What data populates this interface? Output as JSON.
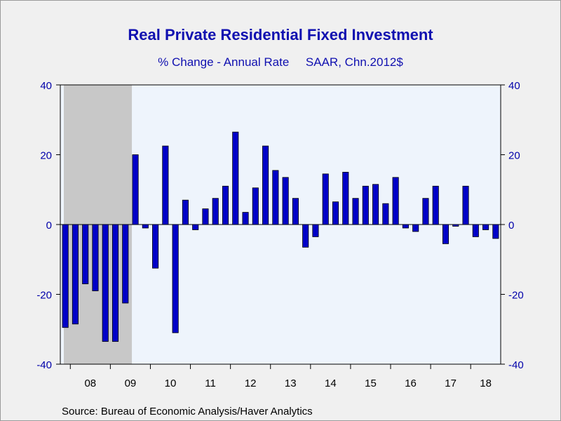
{
  "chart_data": {
    "type": "bar",
    "title": "Real Private Residential Fixed Investment",
    "subtitle": "% Change - Annual Rate     SAAR, Chn.2012$",
    "source": "Source:  Bureau of Economic Analysis/Haver Analytics",
    "ylim": [
      -40,
      40
    ],
    "yticks": [
      40,
      20,
      0,
      -20,
      -40
    ],
    "ytick_labels": [
      "40",
      "20",
      "0",
      "-20",
      "-40"
    ],
    "x_year_labels": [
      "08",
      "09",
      "10",
      "11",
      "12",
      "13",
      "14",
      "15",
      "16",
      "17",
      "18"
    ],
    "first_quarter": "2007Q4",
    "recession_shading": {
      "start_index": 0,
      "end_index": 6
    },
    "grid": false,
    "colors": {
      "bar": "#0000c8",
      "bar_outline": "#000000",
      "plot_bg": "#eef4fc",
      "recession": "#c8c8c8",
      "axis_text": "#0000aa",
      "title": "#1010b0"
    },
    "series": [
      {
        "values": [
          -29.5,
          -28.5,
          -17,
          -19,
          -33.5,
          -33.5,
          -22.5,
          20,
          -1,
          -12.5,
          22.5,
          -31,
          7,
          -1.5,
          4.5,
          7.5,
          11,
          26.5,
          3.5,
          10.5,
          22.5,
          15.5,
          13.5,
          7.5,
          -6.5,
          -3.5,
          14.5,
          6.5,
          15,
          7.5,
          11,
          11.5,
          6,
          13.5,
          -1,
          -2,
          7.5,
          11,
          -5.5,
          -0.5,
          11,
          -3.5,
          -1.5,
          -4
        ]
      }
    ]
  }
}
